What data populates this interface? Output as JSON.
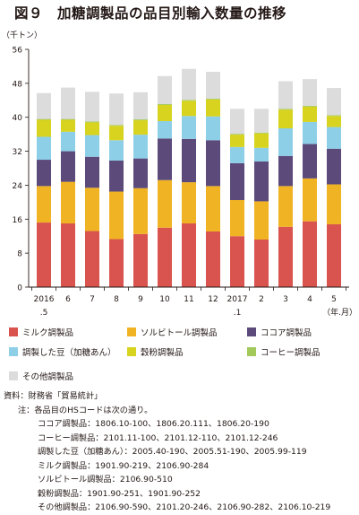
{
  "title": "図９　加糖調製品の品目別輸入数量の推移",
  "chart_data": {
    "type": "bar",
    "stacked": true,
    "unit_label": "（千トン）",
    "x_unit_label": "（年.月）",
    "ylim": [
      0,
      56
    ],
    "yticks": [
      0,
      8,
      16,
      24,
      32,
      40,
      48,
      56
    ],
    "grid": false,
    "categories": [
      "2016.5",
      "6",
      "7",
      "8",
      "9",
      "10",
      "11",
      "12",
      "2017.1",
      "2",
      "3",
      "4",
      "5"
    ],
    "tick_labels": [
      [
        "2016",
        ".5"
      ],
      [
        "6",
        ""
      ],
      [
        "7",
        ""
      ],
      [
        "8",
        ""
      ],
      [
        "9",
        ""
      ],
      [
        "10",
        ""
      ],
      [
        "11",
        ""
      ],
      [
        "12",
        ""
      ],
      [
        "2017",
        ".1"
      ],
      [
        "2",
        ""
      ],
      [
        "3",
        ""
      ],
      [
        "4",
        ""
      ],
      [
        "5",
        ""
      ]
    ],
    "series": [
      {
        "name": "ミルク調製品",
        "color": "#d9534f",
        "values": [
          15.2,
          15.0,
          13.2,
          11.3,
          12.5,
          14.0,
          15.0,
          13.1,
          12.0,
          11.2,
          14.2,
          15.5,
          14.8
        ]
      },
      {
        "name": "ソルビトール調製品",
        "color": "#f0b323",
        "values": [
          8.6,
          9.8,
          10.2,
          11.2,
          10.8,
          11.2,
          9.7,
          10.7,
          8.5,
          9.0,
          9.6,
          10.1,
          9.4
        ]
      },
      {
        "name": "ココア調製品",
        "color": "#5b4a7a",
        "values": [
          6.2,
          7.2,
          7.3,
          7.3,
          7.0,
          9.8,
          10.2,
          10.8,
          8.7,
          9.4,
          7.1,
          8.1,
          8.4
        ]
      },
      {
        "name": "調製した豆（加糖あん）",
        "color": "#8ecfe8",
        "values": [
          5.4,
          4.6,
          5.1,
          4.8,
          5.6,
          4.1,
          5.4,
          5.6,
          3.8,
          3.2,
          6.5,
          5.2,
          5.1
        ]
      },
      {
        "name": "穀粉調製品",
        "color": "#d7d31e",
        "values": [
          4.0,
          2.8,
          3.0,
          3.4,
          3.4,
          3.8,
          3.6,
          4.0,
          2.9,
          3.4,
          4.4,
          3.6,
          2.6
        ]
      },
      {
        "name": "コーヒー調製品",
        "color": "#a3c95b",
        "values": [
          0.2,
          0.2,
          0.2,
          0.2,
          0.2,
          0.2,
          0.2,
          0.2,
          0.2,
          0.2,
          0.2,
          0.2,
          0.2
        ]
      },
      {
        "name": "その他調製品",
        "color": "#dcdcdc",
        "values": [
          6.1,
          7.4,
          7.0,
          7.4,
          6.4,
          6.6,
          7.3,
          6.3,
          5.9,
          5.6,
          6.5,
          6.3,
          6.4
        ]
      }
    ]
  },
  "legend": [
    {
      "label": "ミルク調製品",
      "color": "#d9534f"
    },
    {
      "label": "ソルビトール調製品",
      "color": "#f0b323"
    },
    {
      "label": "ココア調製品",
      "color": "#5b4a7a"
    },
    {
      "label": "調製した豆（加糖あん）",
      "color": "#8ecfe8"
    },
    {
      "label": "穀粉調製品",
      "color": "#d7d31e"
    },
    {
      "label": "コーヒー調製品",
      "color": "#a3c95b"
    },
    {
      "label": "その他調製品",
      "color": "#dcdcdc"
    }
  ],
  "notes": {
    "source": "資料：財務省「貿易統計」",
    "note_intro": "注：各品目のHSコードは次の通り。",
    "codes": [
      "ココア調製品：1806.10-100、1806.20.111、1806.20-190",
      "コーヒー調製品：2101.11-100、2101.12-110、2101.12-246",
      "調製した豆（加糖あん）：2005.40-190、2005.51-190、2005.99-119",
      "ミルク調製品：1901.90-219、2106.90-284",
      "ソルビトール調製品：2106.90-510",
      "穀粉調製品：1901.90-251、1901.90-252",
      "その他調製品：2106.90-590、2101.20-246、2106.90-282、2106.10-219"
    ]
  }
}
